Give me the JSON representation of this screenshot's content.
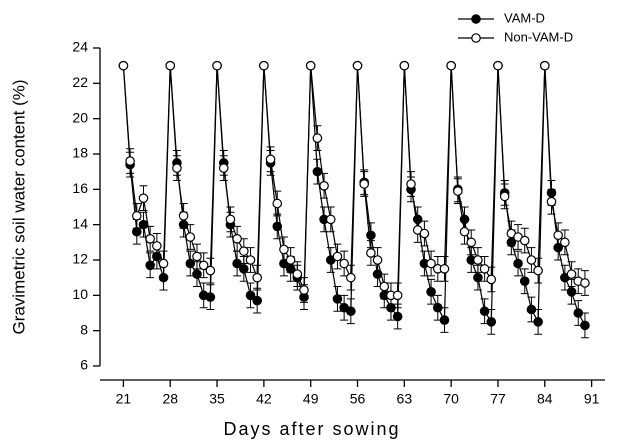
{
  "chart_data": {
    "type": "line",
    "xlabel": "Days after sowing",
    "ylabel": "Gravimetric soil water content (%)",
    "x": [
      21,
      22,
      23,
      24,
      25,
      26,
      27,
      28,
      29,
      30,
      31,
      32,
      33,
      34,
      35,
      36,
      37,
      38,
      39,
      40,
      41,
      42,
      43,
      44,
      45,
      46,
      47,
      48,
      49,
      50,
      51,
      52,
      53,
      54,
      55,
      56,
      57,
      58,
      59,
      60,
      61,
      62,
      63,
      64,
      65,
      66,
      67,
      68,
      69,
      70,
      71,
      72,
      73,
      74,
      75,
      76,
      77,
      78,
      79,
      80,
      81,
      82,
      83,
      84,
      85,
      86,
      87,
      88,
      89,
      90
    ],
    "series": [
      {
        "name": "VAM-D",
        "color": "#000000",
        "marker_fill": "#000000",
        "values": [
          23,
          17.4,
          13.6,
          14.0,
          11.7,
          12.2,
          11.0,
          23,
          17.5,
          14.0,
          11.8,
          11.2,
          10.0,
          9.9,
          23,
          17.5,
          14.0,
          11.8,
          11.5,
          10.0,
          9.7,
          23,
          17.5,
          13.9,
          11.8,
          11.5,
          11.0,
          9.9,
          23,
          17.0,
          14.3,
          12.0,
          9.8,
          9.3,
          9.1,
          23,
          16.4,
          13.4,
          11.2,
          10.0,
          9.3,
          8.8,
          23,
          16.0,
          14.3,
          11.8,
          10.2,
          9.3,
          8.6,
          23,
          16.0,
          14.3,
          12.0,
          11.0,
          9.1,
          8.5,
          23,
          15.8,
          13.0,
          11.8,
          10.8,
          9.2,
          8.5,
          23,
          15.8,
          12.7,
          11.0,
          10.2,
          9.0,
          8.3
        ],
        "errors": [
          0,
          0.7,
          0.7,
          0.7,
          0.7,
          0.7,
          0.7,
          0,
          0.7,
          0.7,
          0.7,
          0.7,
          0.7,
          0.7,
          0,
          0.7,
          0.7,
          0.7,
          0.7,
          0.7,
          0.7,
          0,
          0.7,
          0.7,
          0.7,
          0.7,
          0.7,
          0.7,
          0,
          0.7,
          0.7,
          0.7,
          0.7,
          0.7,
          0.7,
          0,
          0.7,
          0.7,
          0.7,
          0.7,
          0.7,
          0.7,
          0,
          0.7,
          0.7,
          0.7,
          0.7,
          0.7,
          0.7,
          0,
          0.7,
          0.7,
          0.7,
          0.7,
          0.7,
          0.7,
          0,
          0.7,
          0.7,
          0.7,
          0.7,
          0.7,
          0.7,
          0,
          0.7,
          0.7,
          0.7,
          0.7,
          0.7,
          0.7
        ]
      },
      {
        "name": "Non-VAM-D",
        "color": "#000000",
        "marker_fill": "#ffffff",
        "values": [
          23,
          17.6,
          14.5,
          15.5,
          13.2,
          12.8,
          11.8,
          23,
          17.2,
          14.5,
          13.3,
          12.2,
          11.7,
          11.4,
          23,
          17.2,
          14.3,
          13.2,
          12.5,
          12.0,
          11.0,
          23,
          17.7,
          15.2,
          12.6,
          12.0,
          11.2,
          10.3,
          23,
          18.9,
          16.2,
          14.3,
          12.2,
          11.8,
          11.0,
          23,
          16.3,
          12.4,
          12.0,
          10.5,
          10.0,
          10.0,
          23,
          16.3,
          13.7,
          13.5,
          11.8,
          11.5,
          11.5,
          23,
          15.9,
          13.6,
          13.0,
          12.0,
          11.5,
          10.9,
          23,
          15.6,
          13.5,
          13.3,
          13.1,
          12.0,
          11.4,
          23,
          15.3,
          13.4,
          13.0,
          11.2,
          10.8,
          10.7
        ],
        "errors": [
          0,
          0.7,
          0.7,
          0.7,
          0.7,
          0.7,
          0.7,
          0,
          0.7,
          0.7,
          0.7,
          0.7,
          0.7,
          0.7,
          0,
          0.7,
          0.7,
          0.7,
          0.7,
          0.7,
          0.7,
          0,
          0.7,
          0.7,
          0.7,
          0.7,
          0.7,
          0.7,
          0,
          0.7,
          0.7,
          0.7,
          0.7,
          0.7,
          0.7,
          0,
          0.7,
          0.7,
          0.7,
          0.7,
          0.7,
          0.7,
          0,
          0.7,
          0.7,
          0.7,
          0.7,
          0.7,
          0.7,
          0,
          0.7,
          0.7,
          0.7,
          0.7,
          0.7,
          0.7,
          0,
          0.7,
          0.7,
          0.7,
          0.7,
          0.7,
          0.7,
          0,
          0.7,
          0.7,
          0.7,
          0.7,
          0.7,
          0.7
        ]
      }
    ],
    "xlim": [
      17.5,
      93
    ],
    "xticks": [
      21,
      28,
      35,
      42,
      49,
      56,
      63,
      70,
      77,
      84,
      91
    ],
    "ylim": [
      6,
      24
    ],
    "yticks": [
      6,
      8,
      10,
      12,
      14,
      16,
      18,
      20,
      22,
      24
    ],
    "grid": false,
    "legend": "upper right"
  }
}
